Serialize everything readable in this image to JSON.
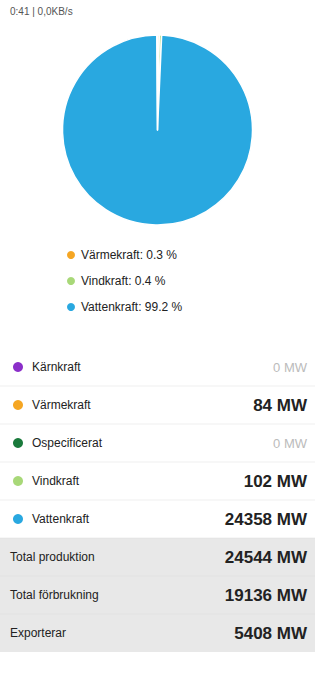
{
  "chart_data": [
    {
      "type": "pie",
      "annotations": [
        "0:41 | 0,0KB/s"
      ],
      "categories": [
        "Värmekraft: 0.3 %",
        "Vindkraft: 0.4 %",
        "Vattenkraft: 99.2 %",
        null
      ],
      "values": [
        0.3,
        0.4,
        99.2,
        0.1
      ],
      "colors": [
        "#F5A623",
        "#A8D878",
        "#29A8E0",
        "#ffffff"
      ],
      "legend": "bottom"
    },
    {
      "type": "table",
      "categories": [
        "Kärnkraft",
        "Värmekraft",
        "Ospecificerat",
        "Vindkraft",
        "Vattenkraft",
        "Total produktion",
        "Total förbrukning",
        "Exporterar"
      ],
      "values": [
        0,
        84,
        0,
        102,
        24358,
        24544,
        19136,
        5408
      ],
      "value_labels": [
        "0 MW",
        "84 MW",
        "0 MW",
        "102 MW",
        "24358 MW",
        "24544 MW",
        "19136 MW",
        "5408 MW"
      ],
      "colors": [
        "#8B2FC9",
        "#F5A623",
        "#1A7A3C",
        "#A8D878",
        "#29A8E0",
        null,
        null,
        null
      ],
      "data_labels": true
    }
  ]
}
